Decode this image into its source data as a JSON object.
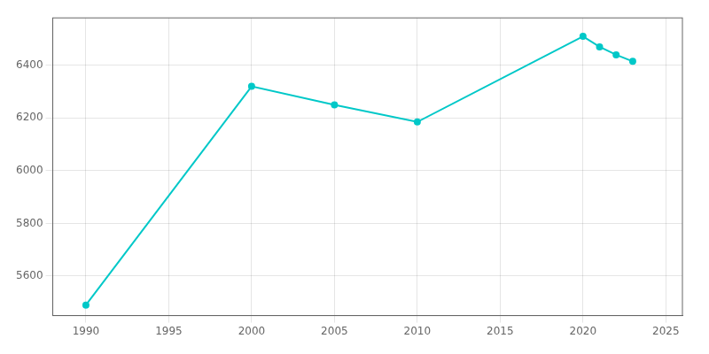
{
  "chart_data": {
    "type": "line",
    "x": [
      1990,
      2000,
      2005,
      2010,
      2020,
      2021,
      2022,
      2023
    ],
    "values": [
      5490,
      6320,
      6250,
      6185,
      6510,
      6470,
      6440,
      6415
    ],
    "color": "#00C8C8",
    "marker": "circle",
    "xlim": [
      1988,
      2026
    ],
    "ylim": [
      5450,
      6580
    ],
    "xticks": [
      1990,
      1995,
      2000,
      2005,
      2010,
      2015,
      2020,
      2025
    ],
    "yticks": [
      5600,
      5800,
      6000,
      6200,
      6400
    ],
    "grid": true
  }
}
